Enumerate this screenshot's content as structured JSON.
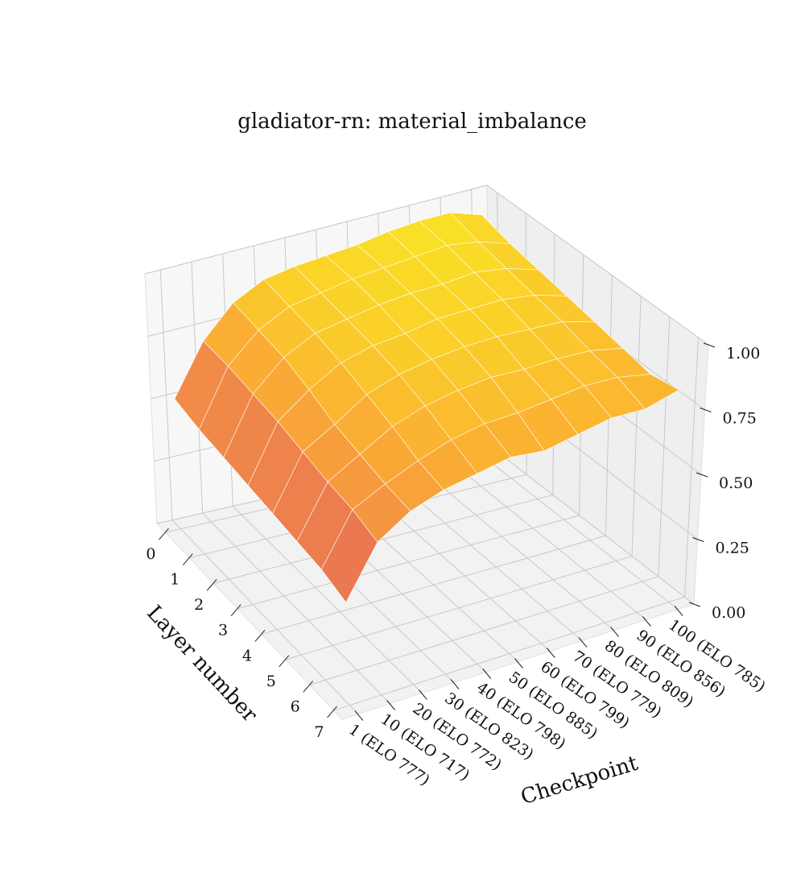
{
  "chart_data": {
    "type": "surface",
    "title": "gladiator-rn: material_imbalance",
    "x_label": "Layer number",
    "y_label": "Checkpoint",
    "x": [
      0,
      1,
      2,
      3,
      4,
      5,
      6,
      7
    ],
    "xlim": [
      -0.35,
      7.35
    ],
    "categories": [
      "1 (ELO 777)",
      "10 (ELO 717)",
      "20 (ELO 772)",
      "30 (ELO 823)",
      "40 (ELO 798)",
      "50 (ELO 885)",
      "60 (ELO 799)",
      "70 (ELO 779)",
      "80 (ELO 809)",
      "90 (ELO 856)",
      "100 (ELO 785)"
    ],
    "values": [
      [
        0.52,
        0.72,
        0.84,
        0.9,
        0.92,
        0.93,
        0.94,
        0.96,
        0.97,
        0.97,
        0.93
      ],
      [
        0.5,
        0.72,
        0.83,
        0.89,
        0.91,
        0.93,
        0.94,
        0.95,
        0.96,
        0.94,
        0.9
      ],
      [
        0.49,
        0.71,
        0.82,
        0.88,
        0.9,
        0.92,
        0.93,
        0.93,
        0.94,
        0.92,
        0.88
      ],
      [
        0.48,
        0.7,
        0.79,
        0.86,
        0.89,
        0.9,
        0.92,
        0.92,
        0.92,
        0.9,
        0.86
      ],
      [
        0.47,
        0.68,
        0.75,
        0.83,
        0.87,
        0.89,
        0.9,
        0.9,
        0.89,
        0.88,
        0.84
      ],
      [
        0.46,
        0.66,
        0.73,
        0.8,
        0.84,
        0.86,
        0.87,
        0.86,
        0.86,
        0.85,
        0.82
      ],
      [
        0.45,
        0.65,
        0.71,
        0.76,
        0.8,
        0.82,
        0.82,
        0.83,
        0.84,
        0.83,
        0.8
      ],
      [
        0.42,
        0.62,
        0.7,
        0.74,
        0.76,
        0.78,
        0.76,
        0.78,
        0.8,
        0.79,
        0.82
      ]
    ],
    "zlim": [
      0,
      1
    ],
    "zticks": [
      {
        "value": 0,
        "label": "0.00"
      },
      0.25,
      {
        "value": 0.5,
        "label": "0.50"
      },
      0.75,
      {
        "value": 1,
        "label": "1.00"
      }
    ],
    "grid": true,
    "colormap": [
      "#e0605e",
      "#f08848",
      "#fbb032",
      "#f9e224"
    ]
  }
}
